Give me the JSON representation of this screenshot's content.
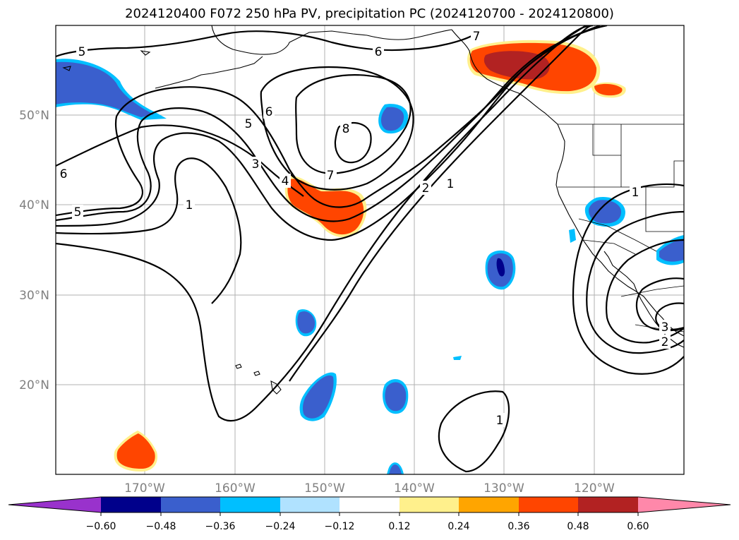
{
  "title": "2024120400 F072 250 hPa PV, precipitation PC (2024120700 - 2024120800)",
  "lat_labels": [
    "50°N",
    "40°N",
    "30°N",
    "20°N"
  ],
  "lon_labels": [
    "170°W",
    "160°W",
    "150°W",
    "140°W",
    "130°W",
    "120°W"
  ],
  "contour_labels": [
    "5",
    "6",
    "7",
    "6",
    "5",
    "3",
    "4",
    "7",
    "8",
    "6",
    "1",
    "5",
    "2",
    "1",
    "1",
    "1",
    "3",
    "2"
  ],
  "colorbar": {
    "ticks": [
      "−0.60",
      "−0.48",
      "−0.36",
      "−0.24",
      "−0.12",
      "0.12",
      "0.24",
      "0.36",
      "0.48",
      "0.60"
    ],
    "colors": [
      "#9932cc",
      "#00008b",
      "#3a5fcd",
      "#00bfff",
      "#b0e2ff",
      "#ffffff",
      "#fff08c",
      "#ffa500",
      "#ff4500",
      "#b22222",
      "#ff88aa"
    ]
  },
  "shading_colors": {
    "neg_strong": "#00008b",
    "neg_mid": "#3a5fcd",
    "neg_light": "#00bfff",
    "pos_light": "#fff08c",
    "pos_mid": "#ff4500",
    "pos_strong": "#b22222"
  }
}
